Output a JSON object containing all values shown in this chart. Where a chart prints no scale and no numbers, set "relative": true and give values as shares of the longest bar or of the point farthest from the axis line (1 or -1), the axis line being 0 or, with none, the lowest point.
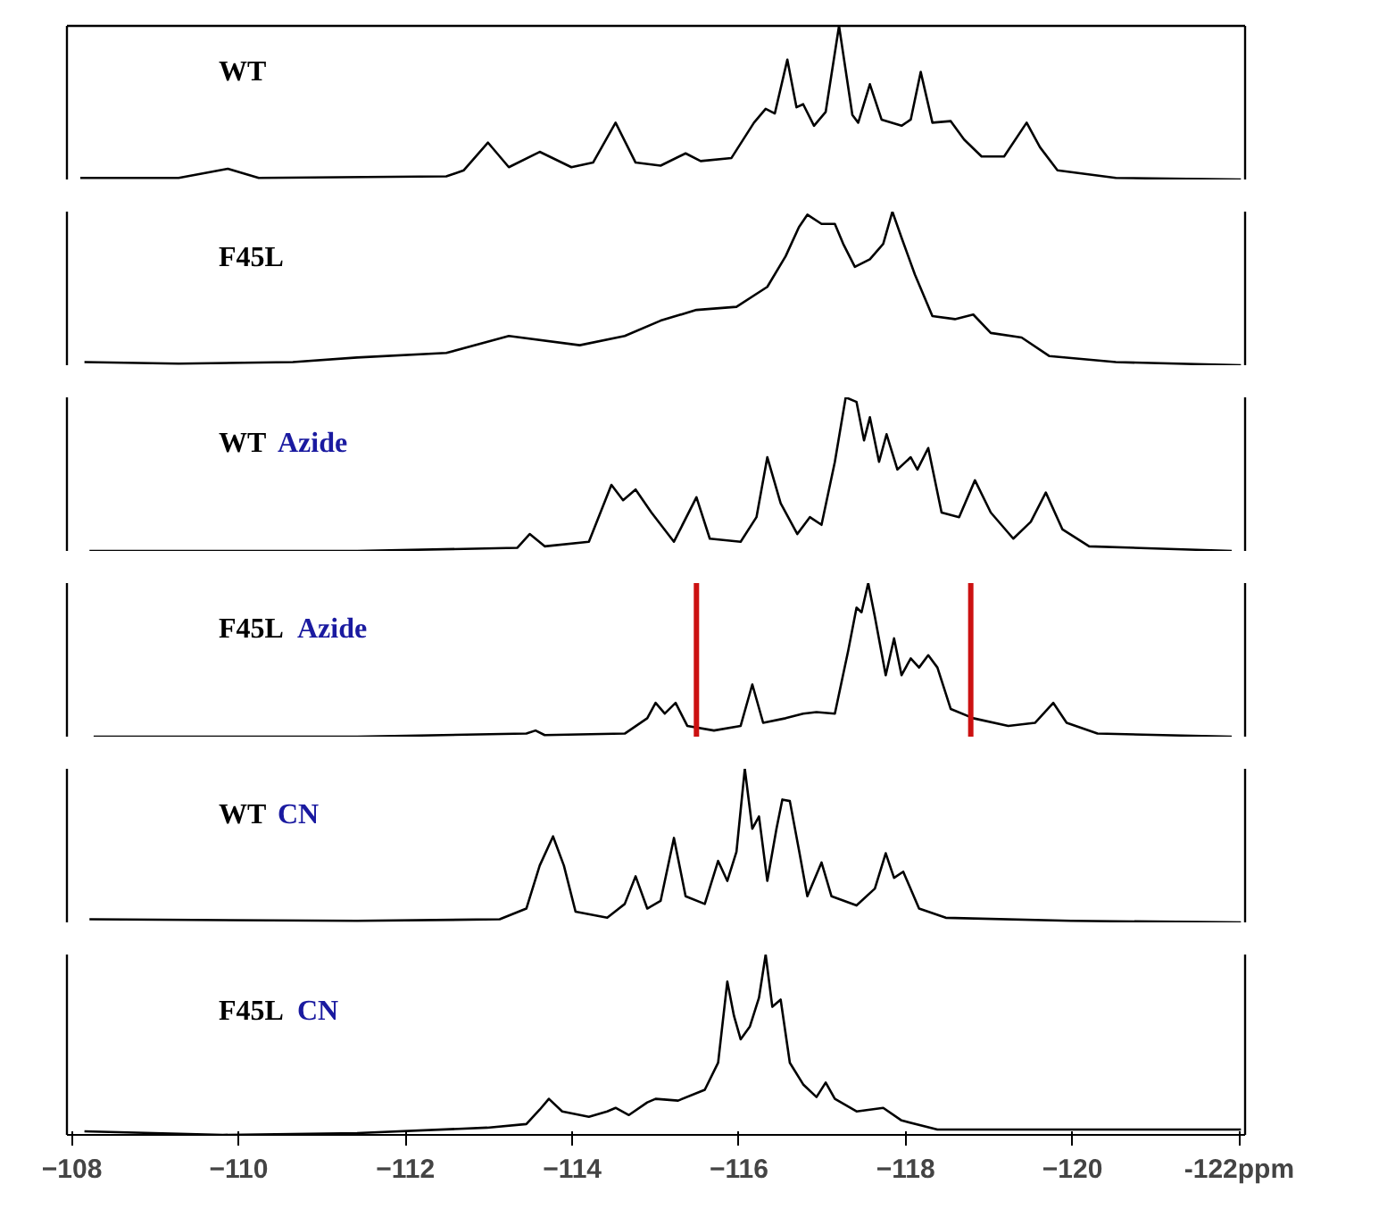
{
  "chart_data": [
    {
      "type": "line",
      "title": "WT",
      "relative": true,
      "xlim": [
        -107.94,
        -122.07
      ],
      "tick_labels": false,
      "grid": false,
      "series": [
        {
          "color": "#000000",
          "x": [
            -108.1,
            -109.28,
            -109.87,
            -110.24,
            -112.49,
            -112.7,
            -112.99,
            -113.24,
            -113.61,
            -113.99,
            -114.25,
            -114.52,
            -114.76,
            -115.06,
            -115.36,
            -115.54,
            -115.91,
            -116.18,
            -116.32,
            -116.43,
            -116.58,
            -116.69,
            -116.77,
            -116.9,
            -117.04,
            -117.2,
            -117.36,
            -117.43,
            -117.57,
            -117.71,
            -117.95,
            -118.06,
            -118.18,
            -118.32,
            -118.54,
            -118.7,
            -118.91,
            -119.18,
            -119.45,
            -119.61,
            -119.82,
            -120.52,
            -122.02
          ],
          "values": [
            0.01,
            0.01,
            0.07,
            0.01,
            0.02,
            0.06,
            0.24,
            0.08,
            0.18,
            0.08,
            0.11,
            0.37,
            0.11,
            0.09,
            0.17,
            0.12,
            0.14,
            0.37,
            0.46,
            0.43,
            0.78,
            0.47,
            0.49,
            0.35,
            0.44,
            1,
            0.42,
            0.37,
            0.62,
            0.39,
            0.35,
            0.39,
            0.7,
            0.37,
            0.38,
            0.26,
            0.15,
            0.15,
            0.37,
            0.21,
            0.06,
            0.01,
            0
          ]
        }
      ]
    },
    {
      "type": "line",
      "title": "F45L",
      "relative": true,
      "xlim": [
        -107.94,
        -122.07
      ],
      "tick_labels": false,
      "grid": false,
      "series": [
        {
          "color": "#000000",
          "x": [
            -108.15,
            -109.28,
            -110.65,
            -111.42,
            -112.49,
            -113.24,
            -114.09,
            -114.63,
            -115.06,
            -115.49,
            -115.97,
            -116.34,
            -116.56,
            -116.72,
            -116.82,
            -116.99,
            -117.15,
            -117.25,
            -117.39,
            -117.57,
            -117.73,
            -117.84,
            -117.95,
            -118.11,
            -118.32,
            -118.59,
            -118.81,
            -119.02,
            -119.39,
            -119.72,
            -120.52,
            -122.02
          ],
          "values": [
            0.02,
            0.01,
            0.02,
            0.05,
            0.08,
            0.19,
            0.13,
            0.19,
            0.29,
            0.36,
            0.38,
            0.51,
            0.71,
            0.9,
            0.98,
            0.92,
            0.92,
            0.79,
            0.64,
            0.69,
            0.79,
            1,
            0.83,
            0.59,
            0.32,
            0.3,
            0.33,
            0.21,
            0.18,
            0.06,
            0.02,
            0
          ]
        }
      ]
    },
    {
      "type": "line",
      "title": "WT",
      "subtitle": "Azide",
      "relative": true,
      "xlim": [
        -107.94,
        -122.07
      ],
      "tick_labels": false,
      "grid": false,
      "series": [
        {
          "color": "#000000",
          "x": [
            -108.21,
            -111.42,
            -113.34,
            -113.49,
            -113.67,
            -114.2,
            -114.47,
            -114.61,
            -114.76,
            -114.95,
            -115.22,
            -115.49,
            -115.65,
            -116.02,
            -116.21,
            -116.34,
            -116.5,
            -116.7,
            -116.85,
            -116.99,
            -117.15,
            -117.28,
            -117.41,
            -117.5,
            -117.57,
            -117.68,
            -117.77,
            -117.9,
            -118.06,
            -118.14,
            -118.27,
            -118.43,
            -118.64,
            -118.83,
            -119.02,
            -119.29,
            -119.5,
            -119.68,
            -119.88,
            -120.2,
            -121.91
          ],
          "values": [
            0,
            0,
            0.02,
            0.11,
            0.03,
            0.06,
            0.43,
            0.33,
            0.4,
            0.25,
            0.06,
            0.35,
            0.08,
            0.06,
            0.22,
            0.61,
            0.31,
            0.11,
            0.22,
            0.17,
            0.58,
            1,
            0.97,
            0.72,
            0.87,
            0.58,
            0.76,
            0.53,
            0.61,
            0.53,
            0.67,
            0.25,
            0.22,
            0.46,
            0.25,
            0.08,
            0.19,
            0.38,
            0.14,
            0.03,
            0
          ]
        }
      ]
    },
    {
      "type": "line",
      "title": "F45L",
      "subtitle": "Azide",
      "relative": true,
      "xlim": [
        -107.94,
        -122.07
      ],
      "tick_labels": false,
      "grid": false,
      "ref_lines": [
        {
          "axis": "x",
          "value": -115.49,
          "color": "#cc1111"
        },
        {
          "axis": "x",
          "value": -118.78,
          "color": "#cc1111"
        }
      ],
      "series": [
        {
          "color": "#000000",
          "x": [
            -108.26,
            -111.42,
            -113.45,
            -113.56,
            -113.67,
            -114.63,
            -114.9,
            -115.0,
            -115.11,
            -115.24,
            -115.38,
            -115.7,
            -116.02,
            -116.16,
            -116.29,
            -116.56,
            -116.77,
            -116.93,
            -117.15,
            -117.31,
            -117.41,
            -117.47,
            -117.55,
            -117.63,
            -117.76,
            -117.86,
            -117.95,
            -118.06,
            -118.16,
            -118.27,
            -118.38,
            -118.54,
            -118.81,
            -119.23,
            -119.55,
            -119.77,
            -119.93,
            -120.3,
            -121.91
          ],
          "values": [
            0,
            0,
            0.02,
            0.04,
            0.01,
            0.02,
            0.12,
            0.22,
            0.15,
            0.22,
            0.07,
            0.04,
            0.07,
            0.34,
            0.09,
            0.12,
            0.15,
            0.16,
            0.15,
            0.56,
            0.84,
            0.81,
            1,
            0.78,
            0.4,
            0.64,
            0.4,
            0.51,
            0.45,
            0.53,
            0.45,
            0.18,
            0.12,
            0.07,
            0.09,
            0.22,
            0.09,
            0.02,
            0
          ]
        }
      ]
    },
    {
      "type": "line",
      "title": "WT",
      "subtitle": "CN",
      "relative": true,
      "xlim": [
        -107.94,
        -122.07
      ],
      "tick_labels": false,
      "grid": false,
      "series": [
        {
          "color": "#000000",
          "x": [
            -108.21,
            -111.42,
            -113.13,
            -113.45,
            -113.61,
            -113.77,
            -113.9,
            -114.04,
            -114.42,
            -114.63,
            -114.76,
            -114.9,
            -115.06,
            -115.22,
            -115.36,
            -115.59,
            -115.75,
            -115.86,
            -115.97,
            -116.07,
            -116.16,
            -116.24,
            -116.34,
            -116.45,
            -116.52,
            -116.61,
            -116.72,
            -116.82,
            -116.99,
            -117.11,
            -117.41,
            -117.63,
            -117.76,
            -117.86,
            -117.97,
            -118.16,
            -118.48,
            -119.98,
            -122.02
          ],
          "values": [
            0.02,
            0.01,
            0.02,
            0.09,
            0.37,
            0.56,
            0.37,
            0.07,
            0.03,
            0.12,
            0.3,
            0.09,
            0.14,
            0.55,
            0.17,
            0.12,
            0.4,
            0.27,
            0.46,
            1,
            0.61,
            0.69,
            0.27,
            0.61,
            0.8,
            0.79,
            0.47,
            0.17,
            0.39,
            0.17,
            0.11,
            0.22,
            0.45,
            0.29,
            0.33,
            0.09,
            0.03,
            0.01,
            0
          ]
        }
      ]
    },
    {
      "type": "line",
      "title": "F45L",
      "subtitle": "CN",
      "relative": true,
      "xlim": [
        -107.94,
        -122.07
      ],
      "xticks": [
        -108,
        -110,
        -112,
        -114,
        -116,
        -118,
        -120,
        {
          "value": -122,
          "label": "-122ppm"
        }
      ],
      "tick_labels": "x",
      "grid": false,
      "series": [
        {
          "color": "#000000",
          "x": [
            -108.15,
            -109.81,
            -111.42,
            -112.98,
            -113.45,
            -113.61,
            -113.72,
            -113.88,
            -114.2,
            -114.42,
            -114.52,
            -114.68,
            -114.9,
            -115.0,
            -115.27,
            -115.59,
            -115.75,
            -115.86,
            -115.94,
            -116.02,
            -116.13,
            -116.24,
            -116.32,
            -116.4,
            -116.5,
            -116.61,
            -116.77,
            -116.93,
            -117.04,
            -117.15,
            -117.41,
            -117.73,
            -117.95,
            -118.38,
            -122.02
          ],
          "values": [
            0.02,
            0,
            0.01,
            0.04,
            0.06,
            0.14,
            0.2,
            0.13,
            0.1,
            0.13,
            0.15,
            0.11,
            0.18,
            0.2,
            0.19,
            0.25,
            0.4,
            0.85,
            0.66,
            0.53,
            0.6,
            0.76,
            1,
            0.71,
            0.75,
            0.4,
            0.28,
            0.21,
            0.29,
            0.2,
            0.13,
            0.15,
            0.08,
            0.03,
            0.03
          ]
        }
      ]
    }
  ]
}
